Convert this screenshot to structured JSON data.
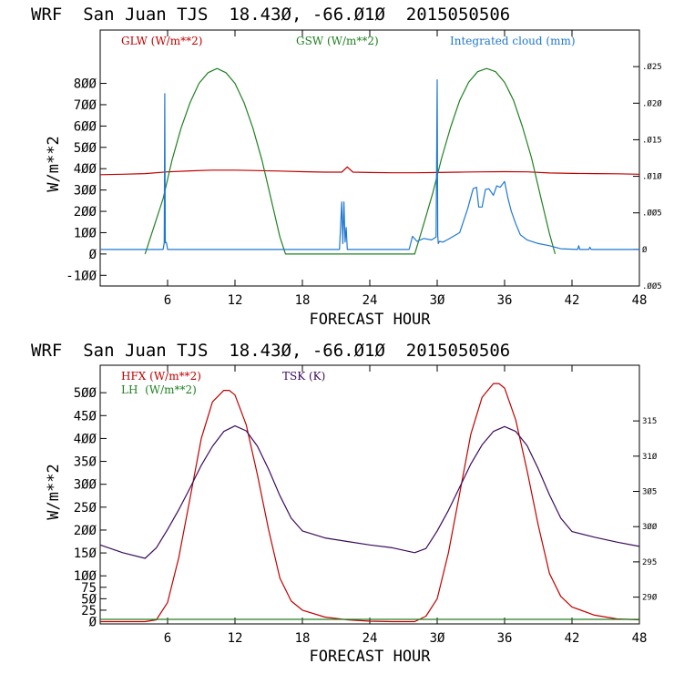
{
  "chart_data": [
    {
      "type": "line",
      "title": "WRF  San Juan TJS  18.43Ø, -66.Ø1Ø  2015050506",
      "xlabel": "FORECAST HOUR",
      "ylabel": "W/m**2",
      "xlim": [
        0,
        48
      ],
      "ylim": [
        -150,
        1050
      ],
      "xticks": [
        6,
        12,
        18,
        24,
        30,
        36,
        42,
        48
      ],
      "xtick_labels": [
        "6",
        "12",
        "18",
        "24",
        "3Ø",
        "36",
        "42",
        "48"
      ],
      "yticks": [
        -100,
        0,
        100,
        200,
        300,
        400,
        500,
        600,
        700,
        800
      ],
      "ytick_labels": [
        "-1ØØ",
        "Ø",
        "1ØØ",
        "2ØØ",
        "3ØØ",
        "4ØØ",
        "5ØØ",
        "6ØØ",
        "7ØØ",
        "8ØØ"
      ],
      "y2lim": [
        -0.005,
        0.03
      ],
      "y2ticks": [
        -0.005,
        0,
        0.005,
        0.01,
        0.015,
        0.02,
        0.025
      ],
      "y2tick_labels": [
        ".ØØ5",
        "Ø",
        ".ØØ5",
        ".Ø1Ø",
        ".Ø15",
        ".Ø2Ø",
        ".Ø25"
      ],
      "grid": false,
      "legend": [
        "GLW (W/m**2)",
        "GSW (W/m**2)",
        "Integrated cloud (mm)"
      ],
      "series": [
        {
          "name": "GLW (W/m**2)",
          "color": "#c00000",
          "axis": "left",
          "x": [
            0,
            2,
            4,
            6,
            8,
            10,
            12,
            14,
            16,
            18,
            20,
            21.5,
            22,
            22.5,
            24,
            26,
            28,
            30,
            32,
            34,
            36,
            38,
            40,
            42,
            44,
            46,
            48
          ],
          "y": [
            372,
            374,
            377,
            385,
            390,
            393,
            393,
            391,
            389,
            386,
            384,
            384,
            408,
            384,
            382,
            381,
            381,
            382,
            384,
            385,
            386,
            385,
            380,
            378,
            377,
            376,
            374
          ]
        },
        {
          "name": "GSW (W/m**2)",
          "color": "#208020",
          "axis": "left",
          "x": [
            4.0,
            4.8,
            5.6,
            6.4,
            7.2,
            8.0,
            8.8,
            9.6,
            10.4,
            11.2,
            12.0,
            12.8,
            13.6,
            14.4,
            15.2,
            16.0,
            16.5,
            28.0,
            28.8,
            29.6,
            30.4,
            31.2,
            32.0,
            32.8,
            33.6,
            34.4,
            35.2,
            36.0,
            36.8,
            37.6,
            38.4,
            39.2,
            40.0,
            40.5
          ],
          "y": [
            0,
            130,
            260,
            440,
            590,
            710,
            800,
            850,
            870,
            850,
            800,
            710,
            590,
            440,
            260,
            80,
            0,
            0,
            140,
            285,
            450,
            595,
            720,
            805,
            855,
            870,
            855,
            805,
            720,
            595,
            450,
            270,
            95,
            0
          ]
        },
        {
          "name": "Integrated cloud (mm)",
          "color": "#1f78d0",
          "axis": "right",
          "x": [
            0,
            5.6,
            5.7,
            5.75,
            5.8,
            5.85,
            5.9,
            6.0,
            21.3,
            21.4,
            21.5,
            21.6,
            21.7,
            21.8,
            21.9,
            22.0,
            22.1,
            22.2,
            27.5,
            27.8,
            28.2,
            28.8,
            29.5,
            29.9,
            30.0,
            30.05,
            30.1,
            30.2,
            30.5,
            31,
            32,
            32.7,
            33.2,
            33.5,
            33.7,
            34.0,
            34.3,
            34.6,
            35.0,
            35.3,
            35.6,
            36.0,
            36.3,
            36.6,
            37.0,
            37.4,
            38.0,
            39.0,
            40.0,
            41.0,
            42.5,
            42.6,
            42.7,
            43.5,
            43.6,
            43.7,
            48
          ],
          "y": [
            0,
            0,
            0.0009,
            0.0213,
            0.0009,
            0.001,
            0.0009,
            0,
            0,
            0.003,
            0.0065,
            0.0008,
            0.0065,
            0.001,
            0.003,
            0,
            0,
            0,
            0,
            0.0018,
            0.0011,
            0.0015,
            0.0013,
            0.0017,
            0.0232,
            0.0019,
            0.0008,
            0.0011,
            0.001,
            0.0014,
            0.0023,
            0.0055,
            0.0083,
            0.0085,
            0.0058,
            0.0058,
            0.0082,
            0.0083,
            0.0074,
            0.0087,
            0.0085,
            0.0093,
            0.007,
            0.0052,
            0.0035,
            0.002,
            0.0013,
            0.0008,
            0.0005,
            0.0001,
            0,
            0.0005,
            0,
            0,
            0.0003,
            0,
            0
          ]
        }
      ]
    },
    {
      "type": "line",
      "title": "WRF  San Juan TJS  18.43Ø, -66.Ø1Ø  2015050506",
      "xlabel": "FORECAST HOUR",
      "ylabel": "W/m**2",
      "xlim": [
        0,
        48
      ],
      "ylim": [
        -5,
        560
      ],
      "xticks": [
        6,
        12,
        18,
        24,
        30,
        36,
        42,
        48
      ],
      "xtick_labels": [
        "6",
        "12",
        "18",
        "24",
        "3Ø",
        "36",
        "42",
        "48"
      ],
      "yticks": [
        0,
        25,
        50,
        75,
        100,
        150,
        200,
        250,
        300,
        350,
        400,
        450,
        500
      ],
      "ytick_labels": [
        "Ø",
        "25",
        "5Ø",
        "75",
        "1ØØ",
        "15Ø",
        "2ØØ",
        "25Ø",
        "3ØØ",
        "35Ø",
        "4ØØ",
        "45Ø",
        "5ØØ"
      ],
      "y2lim": [
        286.2,
        322.9
      ],
      "y2ticks": [
        290,
        295,
        300,
        305,
        310,
        315
      ],
      "y2tick_labels": [
        "29Ø",
        "295",
        "3ØØ",
        "3Ø5",
        "31Ø",
        "315"
      ],
      "grid": false,
      "legend": [
        "HFX (W/m**2)",
        "LH  (W/m**2)",
        "TSK (K)"
      ],
      "series": [
        {
          "name": "HFX (W/m**2)",
          "color": "#c00000",
          "axis": "left",
          "x": [
            0,
            2,
            4,
            5,
            6,
            7,
            8,
            9,
            10,
            11,
            11.5,
            12,
            13,
            14,
            15,
            16,
            17,
            18,
            20,
            22,
            24,
            26,
            28,
            29,
            30,
            31,
            32,
            33,
            34,
            35,
            35.5,
            36,
            37,
            38,
            39,
            40,
            41,
            42,
            44,
            46,
            48
          ],
          "y": [
            0,
            0,
            0,
            4,
            42,
            140,
            270,
            400,
            480,
            505,
            505,
            495,
            430,
            320,
            200,
            95,
            45,
            25,
            10,
            4,
            1,
            0,
            0,
            12,
            50,
            150,
            280,
            410,
            490,
            520,
            520,
            510,
            440,
            330,
            210,
            105,
            55,
            32,
            14,
            6,
            4
          ]
        },
        {
          "name": "LH  (W/m**2)",
          "color": "#208020",
          "axis": "left",
          "x": [
            0,
            6,
            12,
            18,
            24,
            30,
            36,
            42,
            48
          ],
          "y": [
            5,
            5,
            5,
            5,
            5,
            5,
            5,
            5,
            5
          ]
        },
        {
          "name": "TSK (K)",
          "color": "#3a0b5a",
          "axis": "right",
          "x": [
            0,
            2,
            4,
            5,
            6,
            7,
            8,
            9,
            10,
            11,
            12,
            13,
            14,
            15,
            16,
            17,
            18,
            20,
            22,
            24,
            26,
            28,
            29,
            30,
            31,
            32,
            33,
            34,
            35,
            36,
            37,
            38,
            39,
            40,
            41,
            42,
            44,
            46,
            48
          ],
          "y": [
            297.4,
            296.3,
            295.5,
            297.0,
            299.6,
            302.4,
            305.5,
            308.7,
            311.4,
            313.5,
            314.3,
            313.6,
            311.4,
            308.1,
            304.4,
            301.2,
            299.4,
            298.4,
            297.9,
            297.4,
            297.0,
            296.3,
            296.9,
            299.4,
            302.3,
            305.6,
            308.9,
            311.6,
            313.5,
            314.2,
            313.5,
            311.5,
            308.2,
            304.5,
            301.2,
            299.3,
            298.5,
            297.8,
            297.2
          ]
        }
      ]
    }
  ]
}
